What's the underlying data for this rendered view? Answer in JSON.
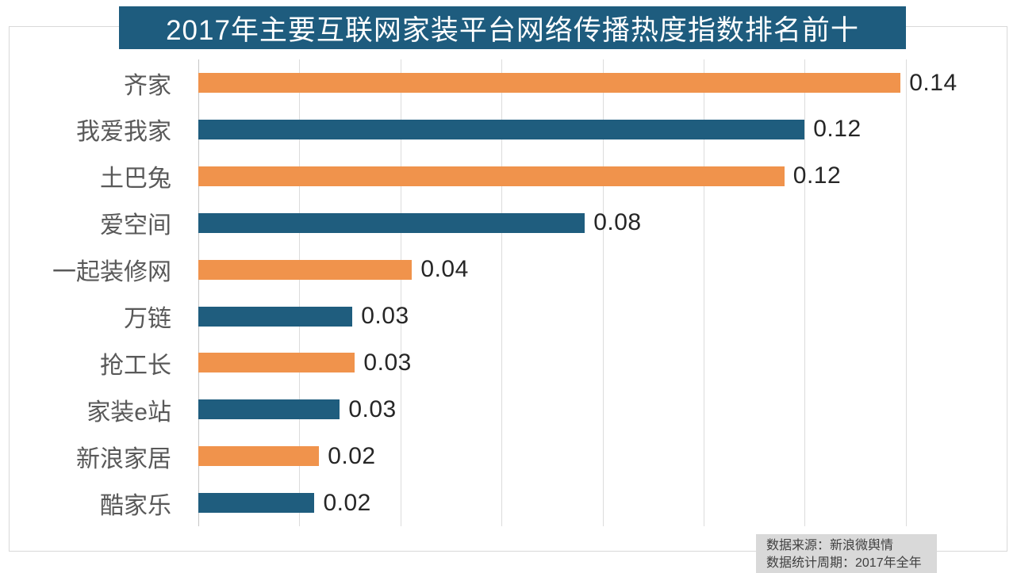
{
  "title": {
    "text": "2017年主要互联网家装平台网络传播热度指数排名前十"
  },
  "chart_data": {
    "type": "bar",
    "orientation": "horizontal",
    "title": "2017年主要互联网家装平台网络传播热度指数排名前十",
    "categories": [
      "齐家",
      "我爱我家",
      "土巴兔",
      "爱空间",
      "一起装修网",
      "万链",
      "抢工长",
      "家装e站",
      "新浪家居",
      "酷家乐"
    ],
    "values": [
      0.14,
      0.12,
      0.12,
      0.08,
      0.04,
      0.03,
      0.03,
      0.03,
      0.02,
      0.02
    ],
    "value_labels": [
      "0.14",
      "0.12",
      "0.12",
      "0.08",
      "0.04",
      "0.03",
      "0.03",
      "0.03",
      "0.02",
      "0.02"
    ],
    "bar_length_estimates": [
      0.139,
      0.12,
      0.116,
      0.0765,
      0.0423,
      0.0305,
      0.031,
      0.028,
      0.0239,
      0.023
    ],
    "xlim": [
      0,
      0.16
    ],
    "gridline_step": 0.02,
    "grid": true,
    "legend": false,
    "xlabel": "",
    "ylabel": "",
    "bar_colors_alternate": [
      "#F0934C",
      "#1F5D7E"
    ]
  },
  "footer": {
    "source_line": "数据来源：新浪微舆情",
    "period_line": "数据统计周期：2017年全年"
  },
  "colors": {
    "banner_bg": "#1E5C7E",
    "orange": "#F0934C",
    "blue": "#1F5D7E",
    "grid": "#DCDCDC",
    "frame_border": "#D9D9D9",
    "category_text": "#595959",
    "value_text": "#262626",
    "footer_bg": "#D9D9D9",
    "footer_text": "#404040"
  }
}
